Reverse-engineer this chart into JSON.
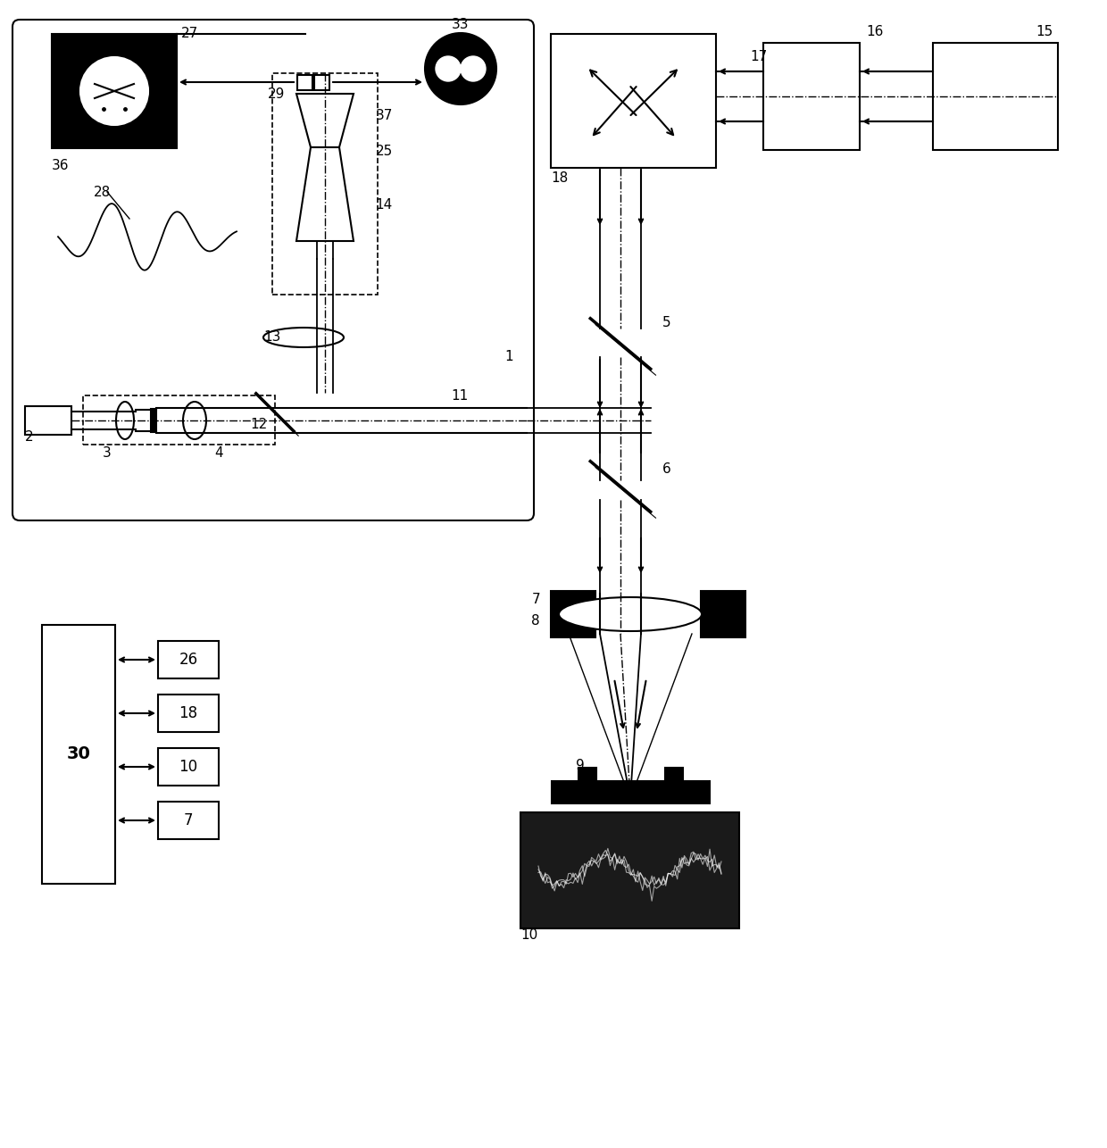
{
  "bg_color": "#ffffff",
  "line_color": "#000000",
  "figsize": [
    12.4,
    12.86
  ],
  "dpi": 100
}
